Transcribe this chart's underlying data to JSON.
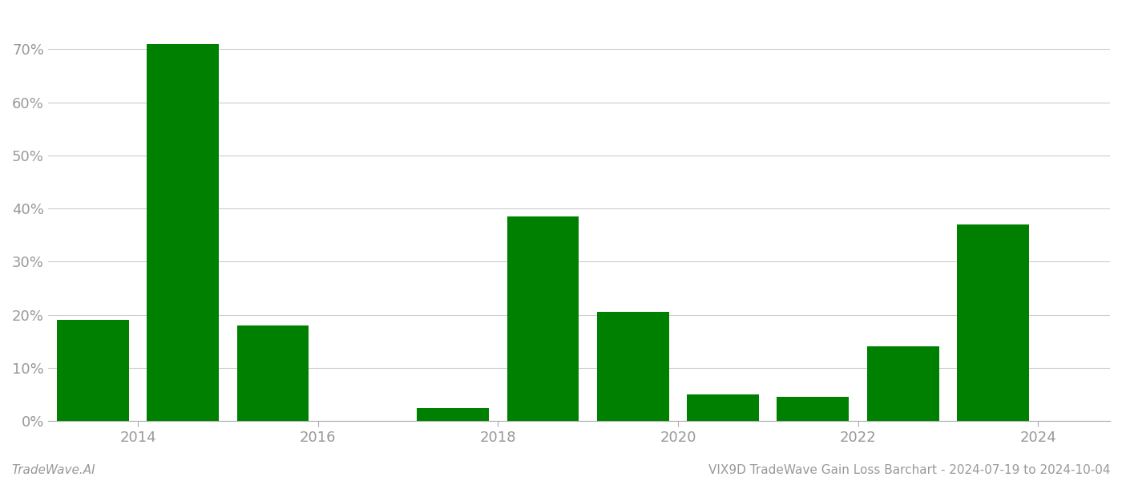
{
  "bar_positions": [
    2013.5,
    2014.5,
    2015.5,
    2016.5,
    2017.5,
    2018.5,
    2019.5,
    2020.5,
    2021.5,
    2022.5,
    2023.5
  ],
  "values": [
    0.19,
    0.71,
    0.18,
    0.0,
    0.025,
    0.385,
    0.205,
    0.05,
    0.045,
    0.14,
    0.37
  ],
  "bar_color": "#008000",
  "background_color": "#ffffff",
  "grid_color": "#cccccc",
  "tick_label_color": "#999999",
  "ylabel_values": [
    0.0,
    0.1,
    0.2,
    0.3,
    0.4,
    0.5,
    0.6,
    0.7
  ],
  "ytick_labels": [
    "0%",
    "10%",
    "20%",
    "30%",
    "40%",
    "50%",
    "60%",
    "70%"
  ],
  "xtick_positions": [
    2014,
    2016,
    2018,
    2020,
    2022,
    2024
  ],
  "xtick_labels": [
    "2014",
    "2016",
    "2018",
    "2020",
    "2022",
    "2024"
  ],
  "footer_left": "TradeWave.AI",
  "footer_right": "VIX9D TradeWave Gain Loss Barchart - 2024-07-19 to 2024-10-04",
  "ylim": [
    0,
    0.77
  ],
  "xlim": [
    2013.0,
    2024.8
  ],
  "bar_width": 0.8
}
